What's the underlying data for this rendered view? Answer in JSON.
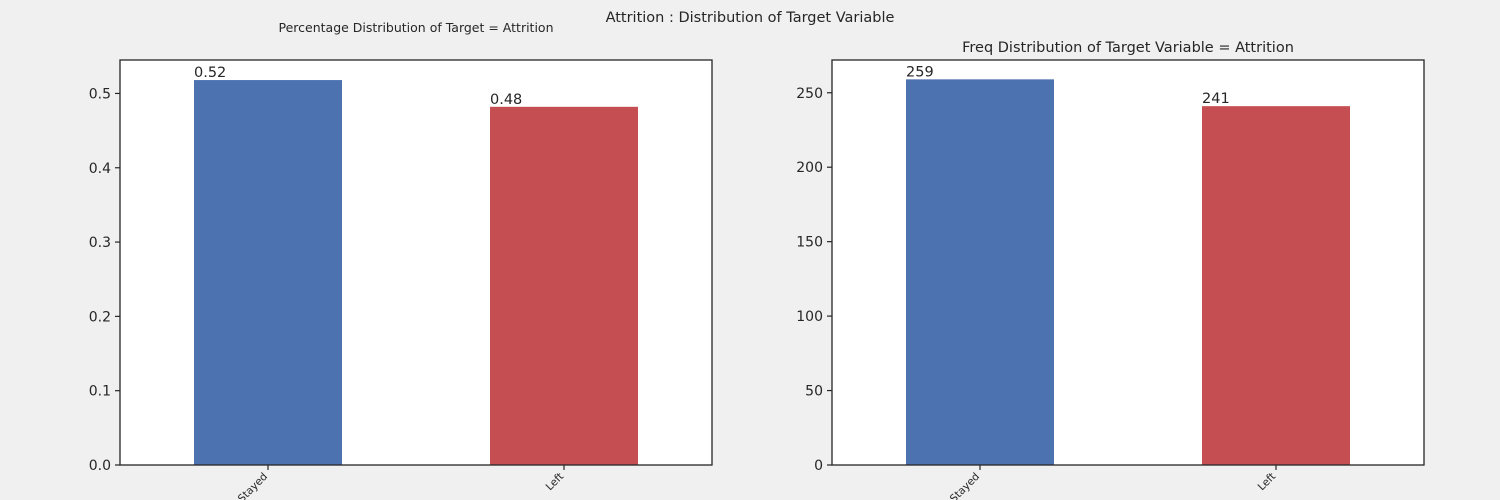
{
  "suptitle": "Attrition : Distribution of Target Variable",
  "colors": {
    "bar_stayed": "#4c72b0",
    "bar_left": "#c44e52",
    "figure_bg": "#f0f0f0",
    "axes_bg": "#ffffff",
    "axis_line": "#262626"
  },
  "chart_data": [
    {
      "type": "bar",
      "title": "Percentage Distribution of Target = Attrition",
      "categories": [
        "Stayed",
        "Left"
      ],
      "values": [
        0.518,
        0.482
      ],
      "value_labels": [
        "0.52",
        "0.48"
      ],
      "ylim": [
        0,
        0.545
      ],
      "yticks": [
        0.0,
        0.1,
        0.2,
        0.3,
        0.4,
        0.5
      ],
      "ytick_labels": [
        "0.0",
        "0.1",
        "0.2",
        "0.3",
        "0.4",
        "0.5"
      ],
      "xlabel": "",
      "ylabel": "",
      "grid": false,
      "bar_colors": [
        "#4c72b0",
        "#c44e52"
      ]
    },
    {
      "type": "bar",
      "title": "Freq Distribution of Target Variable = Attrition",
      "categories": [
        "Stayed",
        "Left"
      ],
      "values": [
        259,
        241
      ],
      "value_labels": [
        "259",
        "241"
      ],
      "ylim": [
        0,
        272
      ],
      "yticks": [
        0,
        50,
        100,
        150,
        200,
        250
      ],
      "ytick_labels": [
        "0",
        "50",
        "100",
        "150",
        "200",
        "250"
      ],
      "xlabel": "",
      "ylabel": "",
      "grid": false,
      "bar_colors": [
        "#4c72b0",
        "#c44e52"
      ]
    }
  ]
}
